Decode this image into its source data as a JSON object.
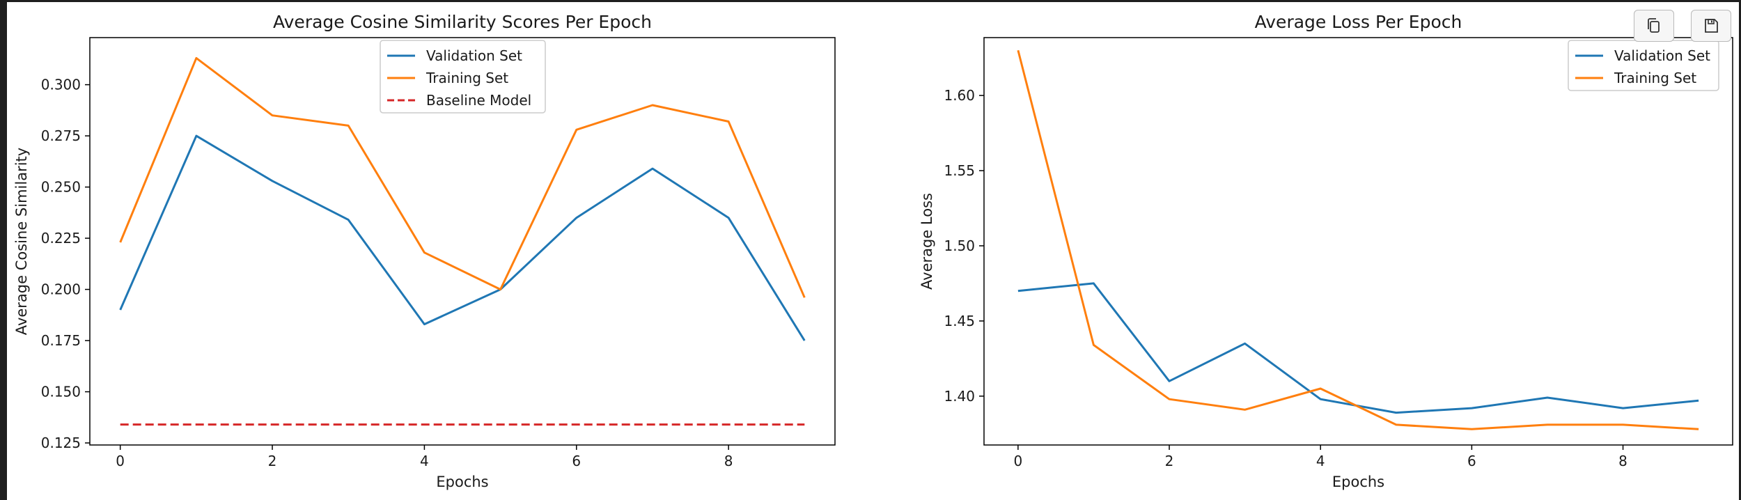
{
  "toolbar": {
    "copy_icon": "copy-icon",
    "save_icon": "save-icon"
  },
  "chart_data": [
    {
      "type": "line",
      "title": "Average Cosine Similarity Scores Per Epoch",
      "xlabel": "Epochs",
      "ylabel": "Average Cosine Similarity",
      "xlim": [
        -0.4,
        9.4
      ],
      "ylim": [
        0.124,
        0.323
      ],
      "xticks": [
        0,
        2,
        4,
        6,
        8
      ],
      "xtick_labels": [
        "0",
        "2",
        "4",
        "6",
        "8"
      ],
      "yticks": [
        0.125,
        0.15,
        0.175,
        0.2,
        0.225,
        0.25,
        0.275,
        0.3
      ],
      "ytick_labels": [
        "0.125",
        "0.150",
        "0.175",
        "0.200",
        "0.225",
        "0.250",
        "0.275",
        "0.300"
      ],
      "legend_position": "upper center",
      "grid": false,
      "x": [
        0,
        1,
        2,
        3,
        4,
        5,
        6,
        7,
        8,
        9
      ],
      "series": [
        {
          "name": "Validation Set",
          "color": "#1f77b4",
          "style": "solid",
          "values": [
            0.19,
            0.275,
            0.253,
            0.234,
            0.183,
            0.2,
            0.235,
            0.259,
            0.235,
            0.175
          ]
        },
        {
          "name": "Training Set",
          "color": "#ff7f0e",
          "style": "solid",
          "values": [
            0.223,
            0.313,
            0.285,
            0.28,
            0.218,
            0.2,
            0.278,
            0.29,
            0.282,
            0.196
          ]
        },
        {
          "name": "Baseline Model",
          "color": "#d62728",
          "style": "dashed",
          "values": [
            0.134,
            0.134,
            0.134,
            0.134,
            0.134,
            0.134,
            0.134,
            0.134,
            0.134,
            0.134
          ]
        }
      ]
    },
    {
      "type": "line",
      "title": "Average Loss Per Epoch",
      "xlabel": "Epochs",
      "ylabel": "Average Loss",
      "xlim": [
        -0.45,
        9.45
      ],
      "ylim": [
        1.3675,
        1.6385
      ],
      "xticks": [
        0,
        2,
        4,
        6,
        8
      ],
      "xtick_labels": [
        "0",
        "2",
        "4",
        "6",
        "8"
      ],
      "yticks": [
        1.4,
        1.45,
        1.5,
        1.55,
        1.6
      ],
      "ytick_labels": [
        "1.40",
        "1.45",
        "1.50",
        "1.55",
        "1.60"
      ],
      "legend_position": "upper right",
      "grid": false,
      "x": [
        0,
        1,
        2,
        3,
        4,
        5,
        6,
        7,
        8,
        9
      ],
      "series": [
        {
          "name": "Validation Set",
          "color": "#1f77b4",
          "style": "solid",
          "values": [
            1.47,
            1.475,
            1.41,
            1.435,
            1.398,
            1.389,
            1.392,
            1.399,
            1.392,
            1.397
          ]
        },
        {
          "name": "Training Set",
          "color": "#ff7f0e",
          "style": "solid",
          "values": [
            1.63,
            1.434,
            1.398,
            1.391,
            1.405,
            1.381,
            1.378,
            1.381,
            1.381,
            1.378
          ]
        }
      ]
    }
  ]
}
